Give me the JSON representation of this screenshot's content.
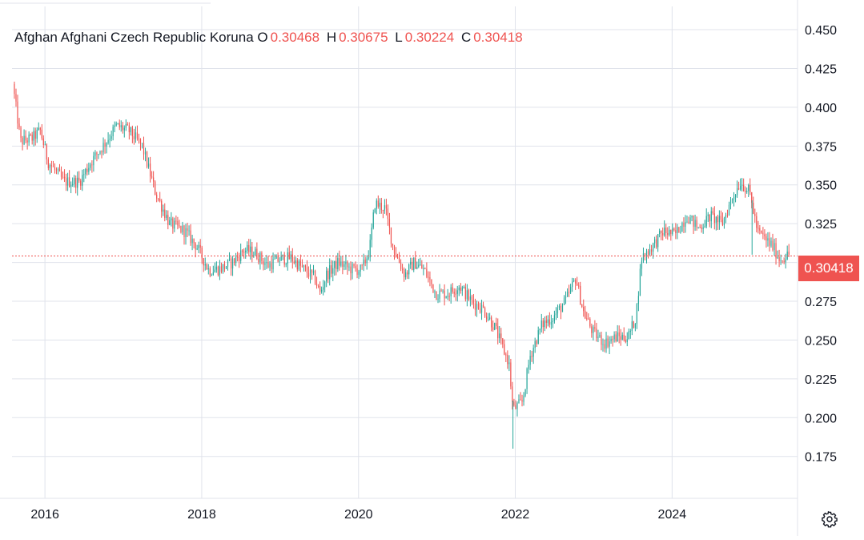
{
  "header": {
    "symbol_name": "Afghan Afghani Czech Republic Koruna",
    "open_label": "O",
    "open": "0.30468",
    "high_label": "H",
    "high": "0.30675",
    "low_label": "L",
    "low": "0.30224",
    "close_label": "C",
    "close": "0.30418"
  },
  "last_price_label": "0.30418",
  "settings_icon": "gear-icon",
  "colors": {
    "up": "#26a69a",
    "down": "#ef5350",
    "grid": "#e0e3eb",
    "text": "#131722"
  },
  "chart_data": {
    "type": "candlestick",
    "title": "",
    "xlabel": "",
    "ylabel": "",
    "y_ticks": [
      "0.450",
      "0.425",
      "0.400",
      "0.375",
      "0.350",
      "0.325",
      "0.300",
      "0.275",
      "0.250",
      "0.225",
      "0.200",
      "0.175"
    ],
    "x_ticks": [
      "2016",
      "2018",
      "2020",
      "2022",
      "2024"
    ],
    "ylim": [
      0.148,
      0.465
    ],
    "xlim": [
      2015.58,
      2025.6
    ],
    "last_price": 0.30418,
    "grid": true,
    "series_path": [
      [
        2015.6,
        0.415
      ],
      [
        2015.7,
        0.378
      ],
      [
        2015.85,
        0.38
      ],
      [
        2015.95,
        0.385
      ],
      [
        2016.05,
        0.365
      ],
      [
        2016.25,
        0.352
      ],
      [
        2016.45,
        0.352
      ],
      [
        2016.6,
        0.365
      ],
      [
        2016.75,
        0.375
      ],
      [
        2016.92,
        0.388
      ],
      [
        2017.08,
        0.385
      ],
      [
        2017.25,
        0.375
      ],
      [
        2017.42,
        0.345
      ],
      [
        2017.6,
        0.325
      ],
      [
        2017.8,
        0.32
      ],
      [
        2017.95,
        0.31
      ],
      [
        2018.1,
        0.295
      ],
      [
        2018.25,
        0.296
      ],
      [
        2018.4,
        0.3
      ],
      [
        2018.55,
        0.308
      ],
      [
        2018.7,
        0.306
      ],
      [
        2018.85,
        0.298
      ],
      [
        2019.0,
        0.302
      ],
      [
        2019.15,
        0.303
      ],
      [
        2019.3,
        0.296
      ],
      [
        2019.45,
        0.29
      ],
      [
        2019.52,
        0.28
      ],
      [
        2019.6,
        0.292
      ],
      [
        2019.75,
        0.3
      ],
      [
        2019.9,
        0.296
      ],
      [
        2020.05,
        0.295
      ],
      [
        2020.15,
        0.308
      ],
      [
        2020.22,
        0.338
      ],
      [
        2020.35,
        0.335
      ],
      [
        2020.45,
        0.31
      ],
      [
        2020.6,
        0.292
      ],
      [
        2020.72,
        0.3
      ],
      [
        2020.85,
        0.295
      ],
      [
        2021.0,
        0.28
      ],
      [
        2021.15,
        0.28
      ],
      [
        2021.3,
        0.285
      ],
      [
        2021.45,
        0.275
      ],
      [
        2021.6,
        0.27
      ],
      [
        2021.75,
        0.258
      ],
      [
        2021.85,
        0.245
      ],
      [
        2021.93,
        0.235
      ],
      [
        2021.98,
        0.205
      ],
      [
        2022.1,
        0.21
      ],
      [
        2022.2,
        0.24
      ],
      [
        2022.35,
        0.26
      ],
      [
        2022.5,
        0.265
      ],
      [
        2022.65,
        0.275
      ],
      [
        2022.78,
        0.29
      ],
      [
        2022.88,
        0.268
      ],
      [
        2023.0,
        0.255
      ],
      [
        2023.15,
        0.248
      ],
      [
        2023.3,
        0.252
      ],
      [
        2023.45,
        0.252
      ],
      [
        2023.55,
        0.265
      ],
      [
        2023.62,
        0.303
      ],
      [
        2023.75,
        0.31
      ],
      [
        2023.9,
        0.32
      ],
      [
        2024.05,
        0.318
      ],
      [
        2024.2,
        0.33
      ],
      [
        2024.35,
        0.322
      ],
      [
        2024.5,
        0.33
      ],
      [
        2024.65,
        0.325
      ],
      [
        2024.78,
        0.342
      ],
      [
        2024.88,
        0.352
      ],
      [
        2025.0,
        0.345
      ],
      [
        2025.1,
        0.32
      ],
      [
        2025.2,
        0.315
      ],
      [
        2025.3,
        0.31
      ],
      [
        2025.38,
        0.302
      ],
      [
        2025.5,
        0.305
      ]
    ],
    "spikes": [
      {
        "x": 2021.97,
        "low": 0.18
      },
      {
        "x": 2025.02,
        "low": 0.305
      }
    ]
  }
}
